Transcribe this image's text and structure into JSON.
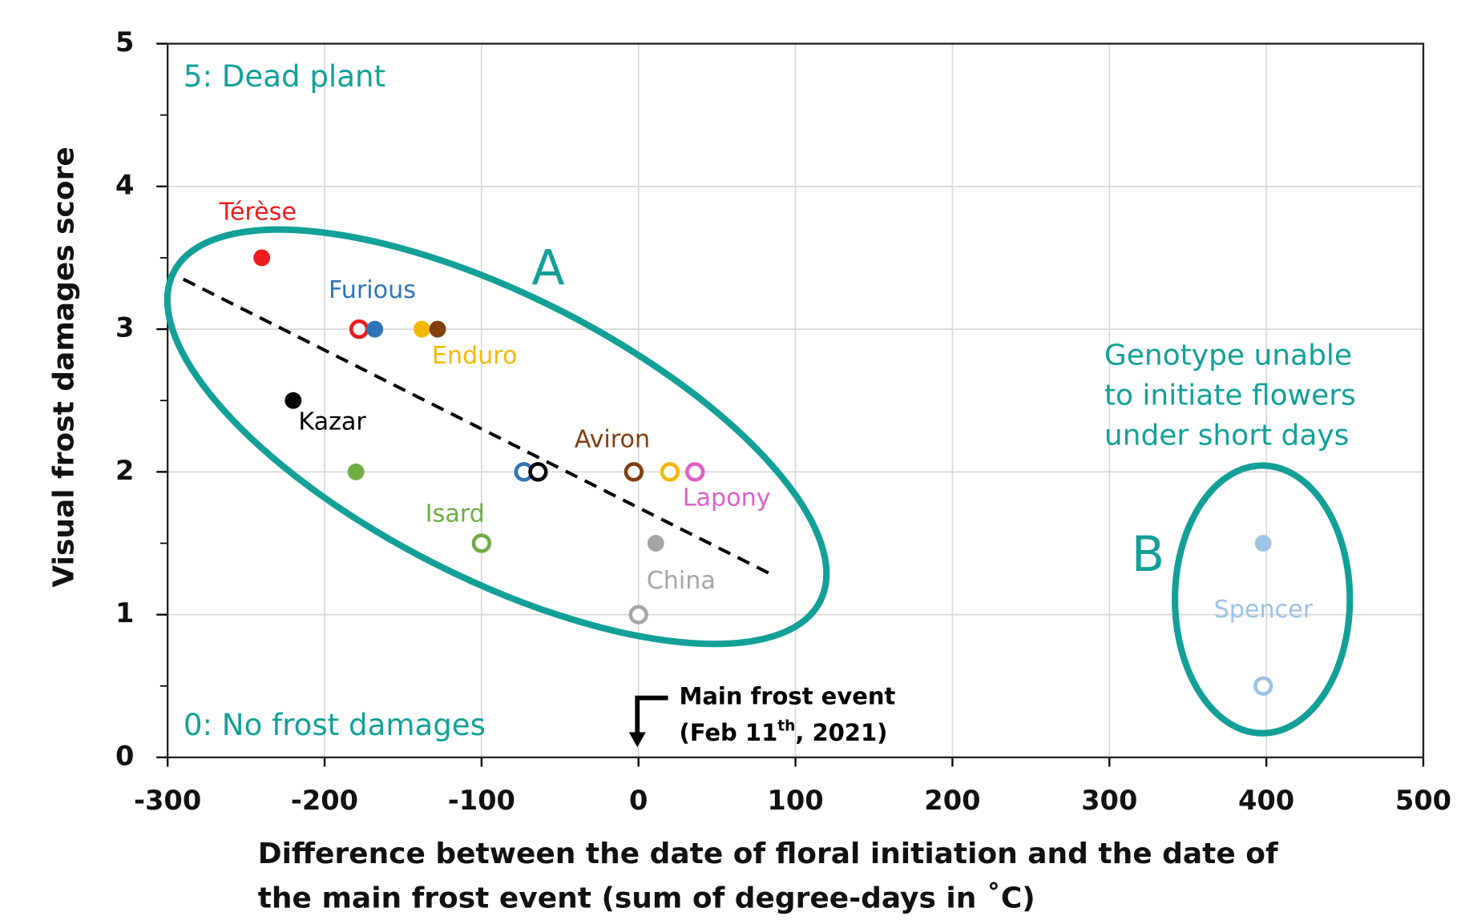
{
  "chart_data": {
    "type": "scatter",
    "xlabel": [
      "Difference between the date of floral initiation and the date of",
      "the main frost event (sum of degree-days in ˚C)"
    ],
    "ylabel": "Visual frost damages score",
    "xlim": [
      -300,
      500
    ],
    "xticks": [
      -300,
      -200,
      -100,
      0,
      100,
      200,
      300,
      400,
      500
    ],
    "ylim": [
      0,
      5
    ],
    "yticks": [
      0,
      1,
      2,
      3,
      4,
      5
    ],
    "yminorticks": [
      0.5,
      1.5,
      2.5,
      3.5,
      4.5
    ],
    "grid": true,
    "series": [
      {
        "name": "Térèse",
        "color": "#ee1c1c",
        "x": [
          -240,
          -178
        ],
        "values": [
          3.5,
          3
        ],
        "open": [
          false,
          true
        ]
      },
      {
        "name": "Furious",
        "color": "#2e75b6",
        "x": [
          -168,
          -73
        ],
        "values": [
          3,
          2
        ],
        "open": [
          false,
          true
        ]
      },
      {
        "name": "Enduro",
        "color": "#f5b800",
        "x": [
          -138,
          20
        ],
        "values": [
          3,
          2
        ],
        "open": [
          false,
          true
        ]
      },
      {
        "name": "Aviron",
        "color": "#7f3f0f",
        "x": [
          -128,
          -3
        ],
        "values": [
          3,
          2
        ],
        "open": [
          false,
          true
        ]
      },
      {
        "name": "Kazar",
        "color": "#000000",
        "x": [
          -220,
          -64
        ],
        "values": [
          2.5,
          2
        ],
        "open": [
          false,
          true
        ]
      },
      {
        "name": "Isard",
        "color": "#70ad47",
        "x": [
          -180,
          -100
        ],
        "values": [
          2,
          1.5
        ],
        "open": [
          false,
          true
        ]
      },
      {
        "name": "Lapony",
        "color": "#e060c8",
        "x": [
          36
        ],
        "values": [
          2
        ],
        "open": [
          true
        ]
      },
      {
        "name": "China",
        "color": "#a6a6a6",
        "x": [
          11,
          0
        ],
        "values": [
          1.5,
          1
        ],
        "open": [
          false,
          true
        ]
      },
      {
        "name": "Spencer",
        "color": "#9dc3e6",
        "x": [
          398,
          398
        ],
        "values": [
          1.5,
          0.5
        ],
        "open": [
          false,
          true
        ]
      }
    ],
    "trend_line": {
      "x": [
        -290,
        85
      ],
      "values": [
        3.35,
        1.28
      ]
    },
    "annotations": {
      "top": "5: Dead plant",
      "bottom": "0: No frost damages",
      "group_a": "A",
      "group_b": "B",
      "group_b_note": [
        "Genotype unable",
        "to initiate flowers",
        "under short days"
      ],
      "frost_event": "Main frost event",
      "frost_date": [
        "(Feb 11",
        "th",
        ", 2021)"
      ]
    }
  }
}
